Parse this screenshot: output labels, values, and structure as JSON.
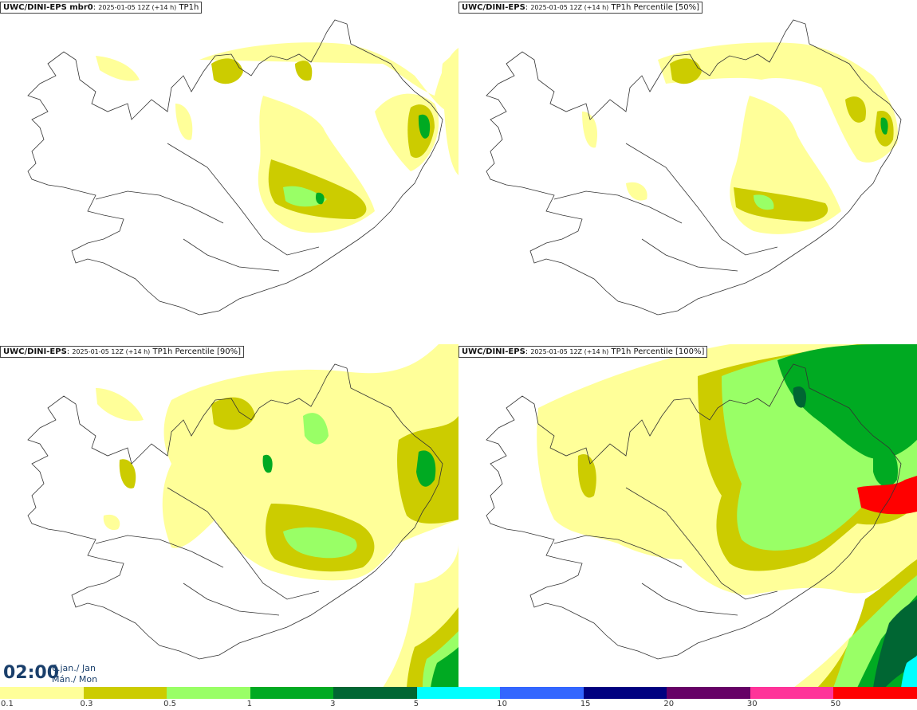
{
  "panels": {
    "top_left": {
      "source": "UWC/DINI-EPS mbr0",
      "run": "2025-01-05 12Z (+14 h)",
      "field": "TP1h"
    },
    "top_right": {
      "source": "UWC/DINI-EPS",
      "run": "2025-01-05 12Z (+14 h)",
      "field": "TP1h Percentile [50%]"
    },
    "bottom_left": {
      "source": "UWC/DINI-EPS",
      "run": "2025-01-05 12Z (+14 h)",
      "field": "TP1h Percentile [90%]"
    },
    "bottom_right": {
      "source": "UWC/DINI-EPS",
      "run": "2025-01-05 12Z (+14 h)",
      "field": "TP1h Percentile [100%]"
    }
  },
  "valid_time": {
    "clock": "02:00",
    "date": "6.jan./ Jan",
    "weekday": "Mán./ Mon"
  },
  "legend": {
    "labels": [
      "0.1",
      "0.3",
      "0.5",
      "1",
      "3",
      "5",
      "10",
      "15",
      "20",
      "30",
      "50"
    ],
    "colors": [
      "#ffff99",
      "#cccc00",
      "#99ff66",
      "#00aa22",
      "#006633",
      "#00ffff",
      "#3366ff",
      "#000080",
      "#660066",
      "#ff3399",
      "#ff0000"
    ]
  },
  "map_colors": {
    "c01": "#ffff99",
    "c03": "#cccc00",
    "c05": "#99ff66",
    "c1": "#00aa22",
    "c3": "#006633",
    "c5": "#00ffff",
    "c50": "#ff0000",
    "coast": "#333333"
  }
}
